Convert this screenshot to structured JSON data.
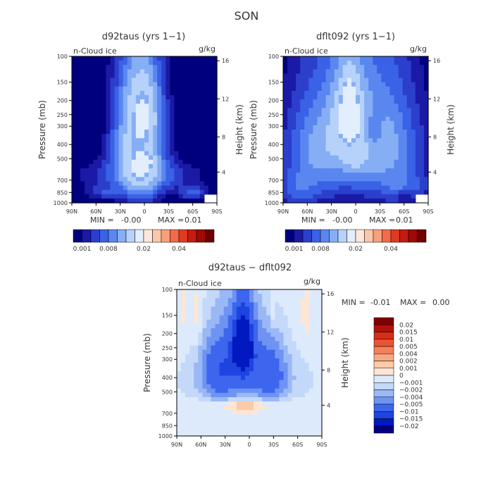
{
  "figure_title": "SON",
  "variable_label": "n-Cloud ice",
  "units": "g/kg",
  "y_left_label": "Pressure (mb)",
  "y_right_label": "Height (km)",
  "colors": {
    "seq": [
      "#00007f",
      "#1a1aa6",
      "#2c3fcc",
      "#3a62e6",
      "#5a86f0",
      "#86aef5",
      "#b7d2fa",
      "#e2eefc",
      "#fde7da",
      "#fcc6ad",
      "#f8a07c",
      "#f26a4a",
      "#e03a22",
      "#c41c10",
      "#9e0a04",
      "#6e0000"
    ],
    "diff": [
      "#00007f",
      "#0019c0",
      "#1e44e0",
      "#3c66ee",
      "#6e93f2",
      "#9ab8f5",
      "#c4d8fa",
      "#ddeafc",
      "#fde6d4",
      "#fccaaa",
      "#f9a882",
      "#f57f5a",
      "#ea5433",
      "#d42e18",
      "#b0120a",
      "#7d0000"
    ]
  },
  "chart_data": [
    {
      "type": "heatmap",
      "panel": "top-left",
      "title": "d92taus (yrs 1−1)",
      "xlabel": "",
      "ylabel": "Pressure (mb)",
      "x_ticks": [
        "90N",
        "60N",
        "30N",
        "0",
        "30S",
        "60S",
        "90S"
      ],
      "y_ticks": [
        "100",
        "150",
        "200",
        "250",
        "300",
        "400",
        "500",
        "700",
        "850",
        "1000"
      ],
      "y_right_ticks": [
        "16",
        "12",
        "8",
        "4"
      ],
      "stats": {
        "min_label": "MIN =",
        "min": "-0.00",
        "max_label": "MAX =",
        "max": "0.01"
      },
      "colorbar_labels": [
        "0.001",
        "0.008",
        "0.02",
        "0.04"
      ],
      "blobs": [
        {
          "lat": 5,
          "p": 500,
          "sx": 18,
          "sy": 260,
          "v": 5
        },
        {
          "lat": 0,
          "p": 250,
          "sx": 12,
          "sy": 90,
          "v": 2.2
        },
        {
          "lat": 10,
          "p": 180,
          "sx": 20,
          "sy": 80,
          "v": 1.3
        },
        {
          "lat": -2,
          "p": 520,
          "sx": 7,
          "sy": 35,
          "v": 1.6
        },
        {
          "lat": 5,
          "p": 650,
          "sx": 45,
          "sy": 100,
          "v": 1.4
        },
        {
          "lat": 28,
          "p": 420,
          "sx": 12,
          "sy": 100,
          "v": 1.2
        },
        {
          "lat": -60,
          "p": 850,
          "sx": 12,
          "sy": 60,
          "v": 1.5
        },
        {
          "lat": 50,
          "p": 850,
          "sx": 14,
          "sy": 60,
          "v": 1.0
        }
      ]
    },
    {
      "type": "heatmap",
      "panel": "top-right",
      "title": "dflt092 (yrs 1−1)",
      "xlabel": "",
      "ylabel": "Pressure (mb)",
      "x_ticks": [
        "90N",
        "60N",
        "30N",
        "0",
        "30S",
        "60S",
        "90S"
      ],
      "y_ticks": [
        "100",
        "150",
        "200",
        "250",
        "300",
        "400",
        "500",
        "700",
        "850",
        "1000"
      ],
      "y_right_ticks": [
        "16",
        "12",
        "8",
        "4"
      ],
      "stats": {
        "min_label": "MIN =",
        "min": "-0.00",
        "max_label": "MAX =",
        "max": "0.01"
      },
      "colorbar_labels": [
        "0.001",
        "0.008",
        "0.02",
        "0.04"
      ],
      "blobs": [
        {
          "lat": 8,
          "p": 240,
          "sx": 6,
          "sy": 60,
          "v": 6.0
        },
        {
          "lat": 8,
          "p": 260,
          "sx": 15,
          "sy": 130,
          "v": 3.2
        },
        {
          "lat": 5,
          "p": 450,
          "sx": 45,
          "sy": 300,
          "v": 2.0
        },
        {
          "lat": 0,
          "p": 520,
          "sx": 7,
          "sy": 40,
          "v": 1.8
        },
        {
          "lat": 45,
          "p": 400,
          "sx": 25,
          "sy": 180,
          "v": 1.7
        },
        {
          "lat": -35,
          "p": 380,
          "sx": 28,
          "sy": 200,
          "v": 1.9
        },
        {
          "lat": -60,
          "p": 800,
          "sx": 20,
          "sy": 160,
          "v": 1.4
        },
        {
          "lat": 70,
          "p": 800,
          "sx": 20,
          "sy": 160,
          "v": 1.4
        }
      ],
      "dips": [
        {
          "lat": -22,
          "p": 320,
          "sx": 8,
          "sy": 70,
          "v": 1.6
        },
        {
          "lat": -60,
          "p": 900,
          "sx": 8,
          "sy": 60,
          "v": 1.0
        }
      ]
    },
    {
      "type": "heatmap",
      "panel": "bottom",
      "title": "d92taus − dflt092",
      "xlabel": "",
      "ylabel": "Pressure (mb)",
      "x_ticks": [
        "90N",
        "60N",
        "30N",
        "0",
        "30S",
        "60S",
        "90S"
      ],
      "y_ticks": [
        "100",
        "150",
        "200",
        "250",
        "300",
        "400",
        "500",
        "700",
        "850",
        "1000"
      ],
      "y_right_ticks": [
        "16",
        "12",
        "8",
        "4"
      ],
      "stats": {
        "min_label": "MIN =",
        "min": "-0.01",
        "max_label": "MAX =",
        "max": "0.00"
      },
      "colorbar_labels": [
        "0.02",
        "0.015",
        "0.01",
        "0.005",
        "0.004",
        "0.002",
        "0.001",
        "0",
        "−0.001",
        "−0.002",
        "−0.004",
        "−0.005",
        "−0.01",
        "−0.015",
        "−0.02"
      ],
      "blobs": [
        {
          "lat": 8,
          "p": 240,
          "sx": 8,
          "sy": 70,
          "v": -6.0
        },
        {
          "lat": 8,
          "p": 260,
          "sx": 16,
          "sy": 150,
          "v": -2.5
        },
        {
          "lat": 40,
          "p": 350,
          "sx": 14,
          "sy": 140,
          "v": -2.2
        },
        {
          "lat": -28,
          "p": 370,
          "sx": 13,
          "sy": 130,
          "v": -2.0
        },
        {
          "lat": 5,
          "p": 420,
          "sx": 55,
          "sy": 150,
          "v": -1.3
        },
        {
          "lat": 5,
          "p": 620,
          "sx": 12,
          "sy": 25,
          "v": 3.2
        },
        {
          "lat": 10,
          "p": 640,
          "sx": 40,
          "sy": 60,
          "v": 1.2
        },
        {
          "lat": -70,
          "p": 150,
          "sx": 5,
          "sy": 50,
          "v": 1.0
        },
        {
          "lat": 83,
          "p": 130,
          "sx": 4,
          "sy": 40,
          "v": 1.0
        },
        {
          "lat": 65,
          "p": 150,
          "sx": 3,
          "sy": 50,
          "v": 1.0
        },
        {
          "lat": -30,
          "p": 130,
          "sx": 2,
          "sy": 35,
          "v": 1.0
        }
      ]
    }
  ]
}
